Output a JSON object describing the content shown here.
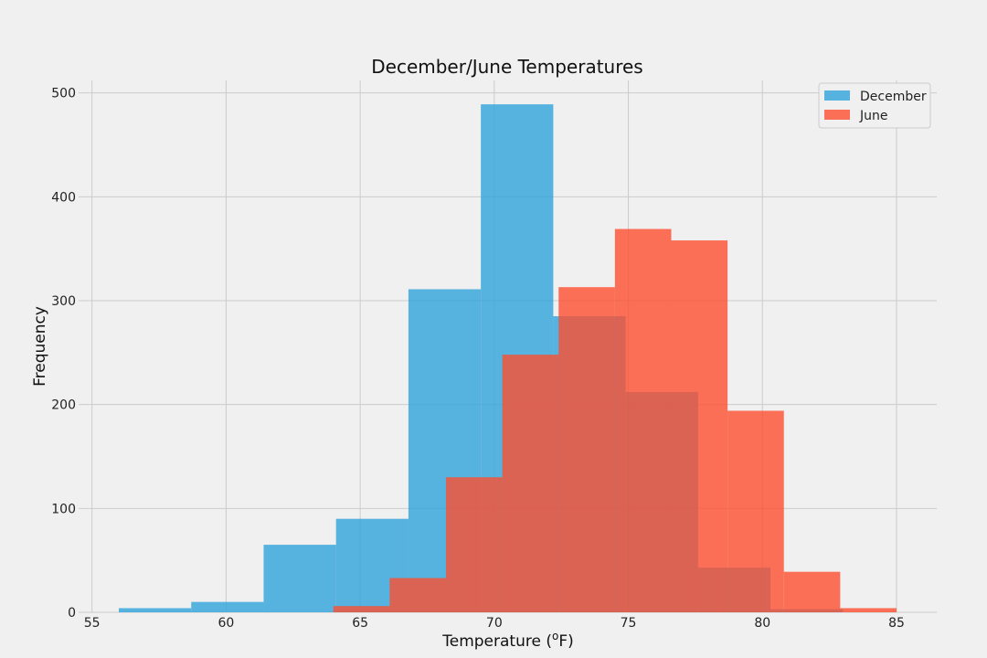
{
  "chart_data": {
    "type": "bar",
    "title": "December/June Temperatures",
    "xlabel_main": "Temperature (",
    "xlabel_sup": "o",
    "xlabel_tail": "F)",
    "ylabel": "Frequency",
    "xlim": [
      54.5,
      86.5
    ],
    "ylim": [
      0,
      512
    ],
    "xticks": [
      55,
      60,
      65,
      70,
      75,
      80,
      85
    ],
    "yticks": [
      0,
      100,
      200,
      300,
      400,
      500
    ],
    "grid": true,
    "legend_position": "top-right",
    "series": [
      {
        "name": "December",
        "color": "#30a2da",
        "bins": [
          {
            "x0": 56.0,
            "x1": 58.7,
            "value": 4
          },
          {
            "x0": 58.7,
            "x1": 61.4,
            "value": 10
          },
          {
            "x0": 61.4,
            "x1": 64.1,
            "value": 65
          },
          {
            "x0": 64.1,
            "x1": 66.8,
            "value": 90
          },
          {
            "x0": 66.8,
            "x1": 69.5,
            "value": 311
          },
          {
            "x0": 69.5,
            "x1": 72.2,
            "value": 489
          },
          {
            "x0": 72.2,
            "x1": 74.9,
            "value": 285
          },
          {
            "x0": 74.9,
            "x1": 77.6,
            "value": 212
          },
          {
            "x0": 77.6,
            "x1": 80.3,
            "value": 43
          },
          {
            "x0": 80.3,
            "x1": 83.0,
            "value": 3
          }
        ]
      },
      {
        "name": "June",
        "color": "#fc4f30",
        "bins": [
          {
            "x0": 64.0,
            "x1": 66.1,
            "value": 6
          },
          {
            "x0": 66.1,
            "x1": 68.2,
            "value": 33
          },
          {
            "x0": 68.2,
            "x1": 70.3,
            "value": 130
          },
          {
            "x0": 70.3,
            "x1": 72.4,
            "value": 248
          },
          {
            "x0": 72.4,
            "x1": 74.5,
            "value": 313
          },
          {
            "x0": 74.5,
            "x1": 76.6,
            "value": 369
          },
          {
            "x0": 76.6,
            "x1": 78.7,
            "value": 358
          },
          {
            "x0": 78.7,
            "x1": 80.8,
            "value": 194
          },
          {
            "x0": 80.8,
            "x1": 82.9,
            "value": 39
          },
          {
            "x0": 82.9,
            "x1": 85.0,
            "value": 4
          }
        ]
      }
    ]
  }
}
